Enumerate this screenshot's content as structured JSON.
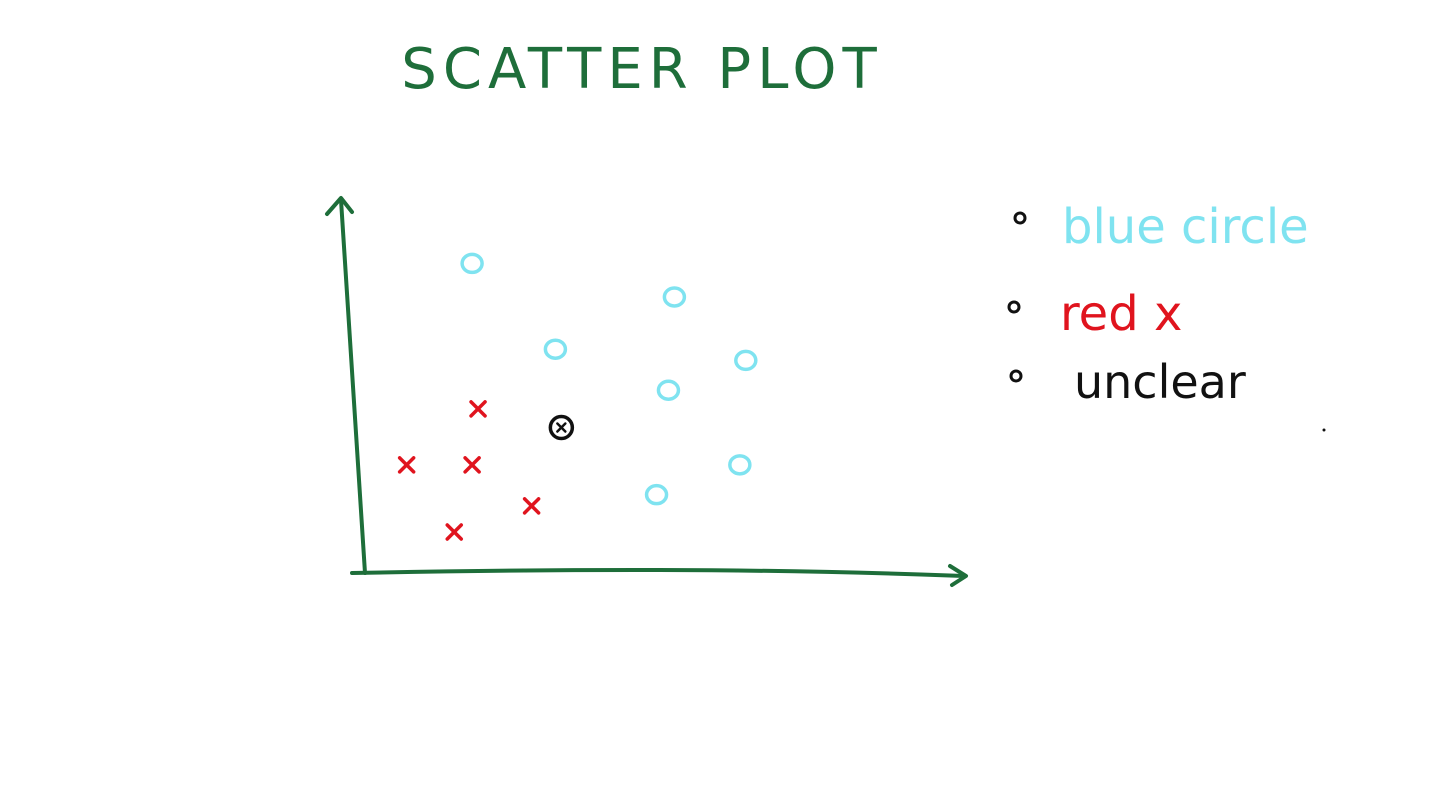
{
  "chart_data": {
    "type": "scatter",
    "title": "SCATTER PLOT",
    "xlabel": "",
    "ylabel": "",
    "xlim": [
      0,
      10
    ],
    "ylim": [
      0,
      10
    ],
    "grid": false,
    "legend_placement": "right",
    "series": [
      {
        "name": "blue circle",
        "marker": "circle",
        "color": "#7fe3f0",
        "points": [
          {
            "x": 1.8,
            "y": 8.3
          },
          {
            "x": 3.2,
            "y": 6.0
          },
          {
            "x": 5.2,
            "y": 7.4
          },
          {
            "x": 5.1,
            "y": 4.9
          },
          {
            "x": 6.4,
            "y": 5.7
          },
          {
            "x": 6.3,
            "y": 2.9
          },
          {
            "x": 4.9,
            "y": 2.1
          }
        ]
      },
      {
        "name": "red x",
        "marker": "x",
        "color": "#e0141e",
        "points": [
          {
            "x": 1.9,
            "y": 4.4
          },
          {
            "x": 0.7,
            "y": 2.9
          },
          {
            "x": 1.8,
            "y": 2.9
          },
          {
            "x": 2.8,
            "y": 1.8
          },
          {
            "x": 1.5,
            "y": 1.1
          }
        ]
      },
      {
        "name": "unclear",
        "marker": "circled-dot",
        "color": "#111111",
        "points": [
          {
            "x": 3.3,
            "y": 3.9
          }
        ]
      }
    ]
  },
  "colors": {
    "ink_green": "#1e6e3a",
    "cyan": "#7fe3f0",
    "red": "#e0141e",
    "black": "#111111"
  }
}
